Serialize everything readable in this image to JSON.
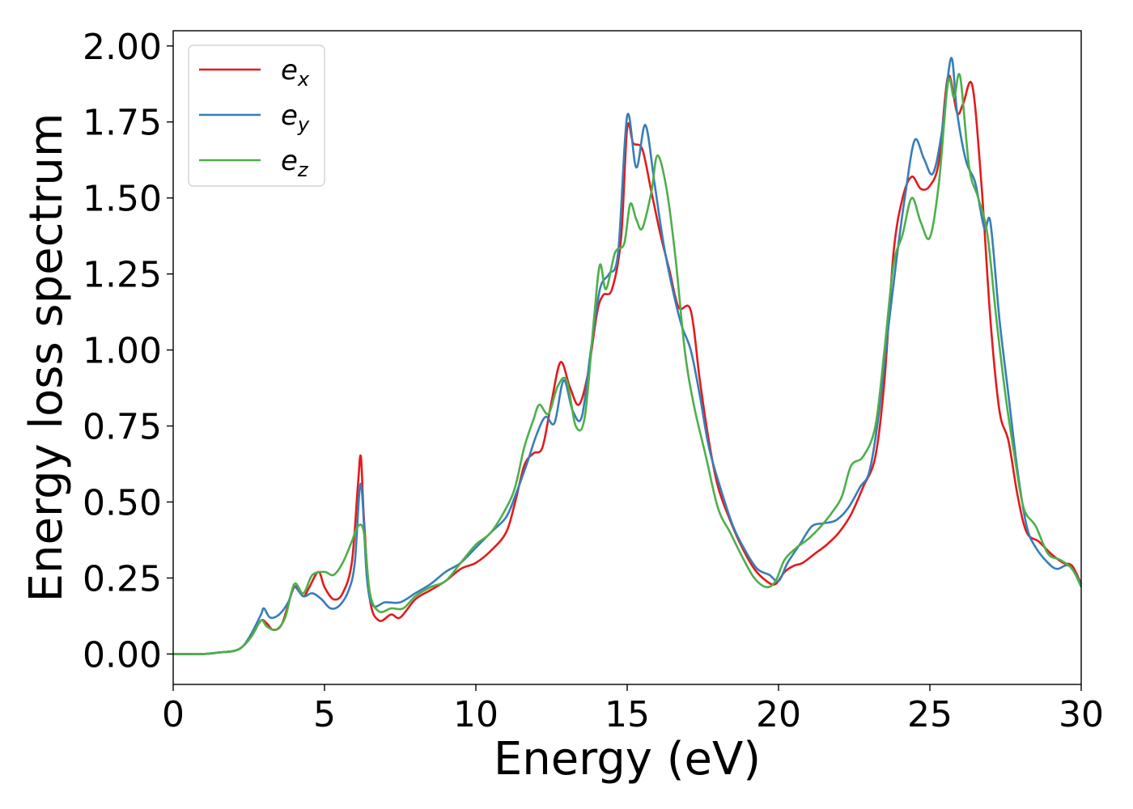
{
  "chart_data": {
    "type": "line",
    "xlabel": "Energy (eV)",
    "ylabel": "Energy loss spectrum",
    "xlim": [
      0,
      30
    ],
    "ylim": [
      -0.1,
      2.05
    ],
    "xticks": [
      0,
      5,
      10,
      15,
      20,
      25,
      30
    ],
    "xtick_labels": [
      "0",
      "5",
      "10",
      "15",
      "20",
      "25",
      "30"
    ],
    "yticks": [
      0.0,
      0.25,
      0.5,
      0.75,
      1.0,
      1.25,
      1.5,
      1.75,
      2.0
    ],
    "ytick_labels": [
      "0.00",
      "0.25",
      "0.50",
      "0.75",
      "1.00",
      "1.25",
      "1.50",
      "1.75",
      "2.00"
    ],
    "grid": false,
    "legend_position": "top-left",
    "series": [
      {
        "name": "e",
        "subscript": "x",
        "color": "#e41a1c",
        "points": [
          [
            0,
            0.0
          ],
          [
            1,
            0.0
          ],
          [
            1.5,
            0.005
          ],
          [
            2,
            0.01
          ],
          [
            2.3,
            0.025
          ],
          [
            2.6,
            0.06
          ],
          [
            2.9,
            0.11
          ],
          [
            3.1,
            0.1
          ],
          [
            3.3,
            0.08
          ],
          [
            3.6,
            0.1
          ],
          [
            4.0,
            0.22
          ],
          [
            4.3,
            0.19
          ],
          [
            4.5,
            0.22
          ],
          [
            4.8,
            0.27
          ],
          [
            5.0,
            0.22
          ],
          [
            5.3,
            0.18
          ],
          [
            5.6,
            0.2
          ],
          [
            5.9,
            0.3
          ],
          [
            6.1,
            0.55
          ],
          [
            6.2,
            0.65
          ],
          [
            6.3,
            0.45
          ],
          [
            6.5,
            0.18
          ],
          [
            6.8,
            0.11
          ],
          [
            7.2,
            0.13
          ],
          [
            7.5,
            0.12
          ],
          [
            8.0,
            0.18
          ],
          [
            8.5,
            0.21
          ],
          [
            9.0,
            0.24
          ],
          [
            9.5,
            0.28
          ],
          [
            10.0,
            0.3
          ],
          [
            10.5,
            0.34
          ],
          [
            11.0,
            0.4
          ],
          [
            11.3,
            0.5
          ],
          [
            11.6,
            0.62
          ],
          [
            11.9,
            0.66
          ],
          [
            12.2,
            0.68
          ],
          [
            12.5,
            0.83
          ],
          [
            12.8,
            0.96
          ],
          [
            13.1,
            0.88
          ],
          [
            13.4,
            0.82
          ],
          [
            13.7,
            0.92
          ],
          [
            14.0,
            1.12
          ],
          [
            14.2,
            1.18
          ],
          [
            14.5,
            1.2
          ],
          [
            14.8,
            1.37
          ],
          [
            15.0,
            1.73
          ],
          [
            15.2,
            1.68
          ],
          [
            15.5,
            1.66
          ],
          [
            15.8,
            1.52
          ],
          [
            16.1,
            1.38
          ],
          [
            16.4,
            1.26
          ],
          [
            16.7,
            1.14
          ],
          [
            17.1,
            1.13
          ],
          [
            17.4,
            0.9
          ],
          [
            17.7,
            0.7
          ],
          [
            18.0,
            0.55
          ],
          [
            18.4,
            0.44
          ],
          [
            18.8,
            0.35
          ],
          [
            19.2,
            0.28
          ],
          [
            19.6,
            0.24
          ],
          [
            19.9,
            0.23
          ],
          [
            20.2,
            0.27
          ],
          [
            20.5,
            0.29
          ],
          [
            20.8,
            0.3
          ],
          [
            21.2,
            0.33
          ],
          [
            21.6,
            0.36
          ],
          [
            22.0,
            0.4
          ],
          [
            22.4,
            0.46
          ],
          [
            22.8,
            0.55
          ],
          [
            23.2,
            0.65
          ],
          [
            23.5,
            0.9
          ],
          [
            23.8,
            1.32
          ],
          [
            24.1,
            1.5
          ],
          [
            24.4,
            1.57
          ],
          [
            24.7,
            1.53
          ],
          [
            25.0,
            1.54
          ],
          [
            25.3,
            1.62
          ],
          [
            25.6,
            1.9
          ],
          [
            25.9,
            1.78
          ],
          [
            26.1,
            1.81
          ],
          [
            26.4,
            1.87
          ],
          [
            26.7,
            1.55
          ],
          [
            27.0,
            1.1
          ],
          [
            27.3,
            0.8
          ],
          [
            27.6,
            0.7
          ],
          [
            27.9,
            0.52
          ],
          [
            28.2,
            0.4
          ],
          [
            28.6,
            0.37
          ],
          [
            29.0,
            0.33
          ],
          [
            29.4,
            0.3
          ],
          [
            29.7,
            0.29
          ],
          [
            30.0,
            0.23
          ]
        ]
      },
      {
        "name": "e",
        "subscript": "y",
        "color": "#377eb8",
        "points": [
          [
            0,
            0.0
          ],
          [
            1,
            0.0
          ],
          [
            1.5,
            0.005
          ],
          [
            2,
            0.01
          ],
          [
            2.3,
            0.025
          ],
          [
            2.6,
            0.07
          ],
          [
            2.9,
            0.13
          ],
          [
            3.0,
            0.15
          ],
          [
            3.2,
            0.12
          ],
          [
            3.5,
            0.13
          ],
          [
            3.8,
            0.17
          ],
          [
            4.0,
            0.22
          ],
          [
            4.3,
            0.19
          ],
          [
            4.6,
            0.2
          ],
          [
            4.9,
            0.18
          ],
          [
            5.2,
            0.15
          ],
          [
            5.5,
            0.16
          ],
          [
            5.8,
            0.21
          ],
          [
            6.0,
            0.3
          ],
          [
            6.2,
            0.56
          ],
          [
            6.4,
            0.25
          ],
          [
            6.6,
            0.16
          ],
          [
            7.0,
            0.17
          ],
          [
            7.5,
            0.17
          ],
          [
            8.0,
            0.2
          ],
          [
            8.5,
            0.23
          ],
          [
            9.0,
            0.27
          ],
          [
            9.5,
            0.3
          ],
          [
            10.0,
            0.35
          ],
          [
            10.5,
            0.4
          ],
          [
            11.0,
            0.45
          ],
          [
            11.3,
            0.52
          ],
          [
            11.7,
            0.63
          ],
          [
            12.0,
            0.72
          ],
          [
            12.3,
            0.78
          ],
          [
            12.6,
            0.76
          ],
          [
            12.9,
            0.9
          ],
          [
            13.2,
            0.8
          ],
          [
            13.5,
            0.78
          ],
          [
            13.8,
            1.0
          ],
          [
            14.1,
            1.2
          ],
          [
            14.4,
            1.25
          ],
          [
            14.7,
            1.32
          ],
          [
            15.0,
            1.77
          ],
          [
            15.3,
            1.6
          ],
          [
            15.6,
            1.74
          ],
          [
            15.9,
            1.55
          ],
          [
            16.2,
            1.35
          ],
          [
            16.5,
            1.2
          ],
          [
            16.8,
            1.08
          ],
          [
            17.1,
            1.0
          ],
          [
            17.4,
            0.85
          ],
          [
            17.7,
            0.68
          ],
          [
            18.1,
            0.54
          ],
          [
            18.5,
            0.42
          ],
          [
            18.9,
            0.34
          ],
          [
            19.3,
            0.28
          ],
          [
            19.7,
            0.26
          ],
          [
            20.0,
            0.24
          ],
          [
            20.3,
            0.3
          ],
          [
            20.7,
            0.36
          ],
          [
            21.1,
            0.42
          ],
          [
            21.5,
            0.43
          ],
          [
            21.9,
            0.44
          ],
          [
            22.3,
            0.48
          ],
          [
            22.7,
            0.55
          ],
          [
            23.0,
            0.6
          ],
          [
            23.3,
            0.78
          ],
          [
            23.6,
            1.05
          ],
          [
            23.9,
            1.3
          ],
          [
            24.2,
            1.52
          ],
          [
            24.5,
            1.69
          ],
          [
            24.8,
            1.63
          ],
          [
            25.1,
            1.58
          ],
          [
            25.4,
            1.72
          ],
          [
            25.7,
            1.96
          ],
          [
            25.9,
            1.78
          ],
          [
            26.2,
            1.62
          ],
          [
            26.5,
            1.55
          ],
          [
            26.8,
            1.4
          ],
          [
            27.0,
            1.42
          ],
          [
            27.3,
            1.1
          ],
          [
            27.6,
            0.85
          ],
          [
            27.9,
            0.6
          ],
          [
            28.2,
            0.42
          ],
          [
            28.5,
            0.35
          ],
          [
            28.9,
            0.3
          ],
          [
            29.2,
            0.28
          ],
          [
            29.6,
            0.29
          ],
          [
            30.0,
            0.23
          ]
        ]
      },
      {
        "name": "e",
        "subscript": "z",
        "color": "#4daf4a",
        "points": [
          [
            0,
            0.0
          ],
          [
            1,
            0.0
          ],
          [
            1.5,
            0.005
          ],
          [
            2,
            0.01
          ],
          [
            2.3,
            0.025
          ],
          [
            2.6,
            0.06
          ],
          [
            2.9,
            0.11
          ],
          [
            3.1,
            0.09
          ],
          [
            3.4,
            0.08
          ],
          [
            3.7,
            0.12
          ],
          [
            4.0,
            0.23
          ],
          [
            4.3,
            0.2
          ],
          [
            4.6,
            0.26
          ],
          [
            5.0,
            0.27
          ],
          [
            5.3,
            0.26
          ],
          [
            5.6,
            0.3
          ],
          [
            5.9,
            0.37
          ],
          [
            6.1,
            0.42
          ],
          [
            6.3,
            0.4
          ],
          [
            6.5,
            0.2
          ],
          [
            6.8,
            0.14
          ],
          [
            7.2,
            0.15
          ],
          [
            7.6,
            0.15
          ],
          [
            8.0,
            0.19
          ],
          [
            8.5,
            0.22
          ],
          [
            9.0,
            0.24
          ],
          [
            9.5,
            0.3
          ],
          [
            10.0,
            0.36
          ],
          [
            10.5,
            0.4
          ],
          [
            11.0,
            0.48
          ],
          [
            11.3,
            0.55
          ],
          [
            11.6,
            0.68
          ],
          [
            11.9,
            0.77
          ],
          [
            12.1,
            0.82
          ],
          [
            12.4,
            0.79
          ],
          [
            12.7,
            0.88
          ],
          [
            13.0,
            0.9
          ],
          [
            13.3,
            0.75
          ],
          [
            13.6,
            0.78
          ],
          [
            13.9,
            1.1
          ],
          [
            14.1,
            1.28
          ],
          [
            14.3,
            1.2
          ],
          [
            14.6,
            1.32
          ],
          [
            14.9,
            1.35
          ],
          [
            15.1,
            1.48
          ],
          [
            15.3,
            1.43
          ],
          [
            15.5,
            1.4
          ],
          [
            15.8,
            1.52
          ],
          [
            16.0,
            1.64
          ],
          [
            16.3,
            1.53
          ],
          [
            16.6,
            1.3
          ],
          [
            16.9,
            1.0
          ],
          [
            17.2,
            0.82
          ],
          [
            17.6,
            0.65
          ],
          [
            18.0,
            0.48
          ],
          [
            18.4,
            0.4
          ],
          [
            18.8,
            0.32
          ],
          [
            19.2,
            0.25
          ],
          [
            19.6,
            0.22
          ],
          [
            19.9,
            0.24
          ],
          [
            20.2,
            0.31
          ],
          [
            20.6,
            0.35
          ],
          [
            21.0,
            0.38
          ],
          [
            21.4,
            0.42
          ],
          [
            21.8,
            0.47
          ],
          [
            22.1,
            0.52
          ],
          [
            22.4,
            0.62
          ],
          [
            22.8,
            0.65
          ],
          [
            23.2,
            0.75
          ],
          [
            23.5,
            1.0
          ],
          [
            23.8,
            1.28
          ],
          [
            24.1,
            1.38
          ],
          [
            24.4,
            1.5
          ],
          [
            24.7,
            1.42
          ],
          [
            25.0,
            1.37
          ],
          [
            25.3,
            1.55
          ],
          [
            25.6,
            1.88
          ],
          [
            25.8,
            1.83
          ],
          [
            26.0,
            1.9
          ],
          [
            26.3,
            1.6
          ],
          [
            26.6,
            1.5
          ],
          [
            26.9,
            1.38
          ],
          [
            27.2,
            1.1
          ],
          [
            27.5,
            0.85
          ],
          [
            27.8,
            0.65
          ],
          [
            28.1,
            0.48
          ],
          [
            28.5,
            0.42
          ],
          [
            28.9,
            0.33
          ],
          [
            29.3,
            0.31
          ],
          [
            29.7,
            0.28
          ],
          [
            30.0,
            0.22
          ]
        ]
      }
    ]
  }
}
